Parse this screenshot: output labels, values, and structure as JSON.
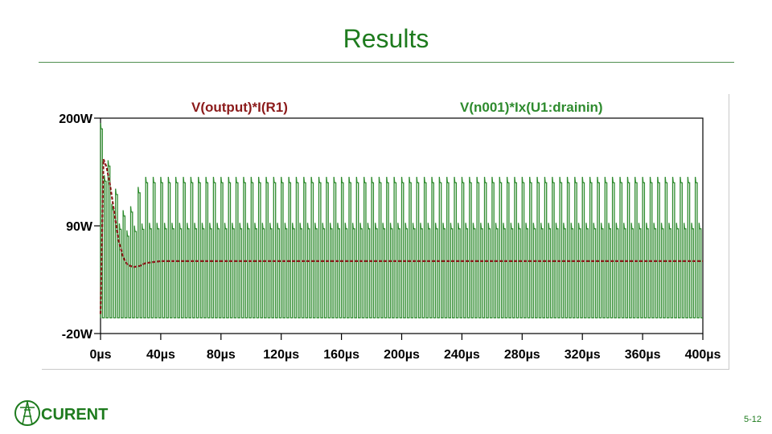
{
  "slide": {
    "title": "Results",
    "page_number": "5-12",
    "logo_text": "CURENT"
  },
  "colors": {
    "title": "#1e7b1e",
    "series_output": "#8b1a1a",
    "series_drain": "#2e8b2e",
    "axis": "#000000"
  },
  "chart_data": {
    "type": "line",
    "title": "",
    "xlabel": "",
    "ylabel": "",
    "xlim": [
      0,
      400
    ],
    "ylim": [
      -20,
      200
    ],
    "yticks": [
      {
        "value": 200,
        "label": "200W"
      },
      {
        "value": 90,
        "label": "90W"
      },
      {
        "value": -20,
        "label": "-20W"
      }
    ],
    "xticks": [
      {
        "value": 0,
        "label": "0µs"
      },
      {
        "value": 40,
        "label": "40µs"
      },
      {
        "value": 80,
        "label": "80µs"
      },
      {
        "value": 120,
        "label": "120µs"
      },
      {
        "value": 160,
        "label": "160µs"
      },
      {
        "value": 200,
        "label": "200µs"
      },
      {
        "value": 240,
        "label": "240µs"
      },
      {
        "value": 280,
        "label": "280µs"
      },
      {
        "value": 320,
        "label": "320µs"
      },
      {
        "value": 360,
        "label": "360µs"
      },
      {
        "value": 400,
        "label": "400µs"
      }
    ],
    "grid": false,
    "series": [
      {
        "name": "V(output)*I(R1)",
        "color": "#8b1a1a",
        "style": "dashed",
        "x": [
          0,
          2,
          4,
          6,
          8,
          10,
          12,
          15,
          18,
          22,
          26,
          30,
          35,
          40,
          50,
          60,
          80,
          120,
          160,
          200,
          240,
          280,
          320,
          360,
          400
        ],
        "y": [
          0,
          158,
          150,
          135,
          115,
          95,
          75,
          58,
          50,
          48,
          49,
          52,
          53,
          54,
          54,
          54,
          54,
          54,
          54,
          54,
          54,
          54,
          54,
          54,
          54
        ]
      },
      {
        "name": "V(n001)*Ix(U1:drainin)",
        "color": "#2e8b2e",
        "style": "switching",
        "period_us": 2.5,
        "low": -4,
        "x": [
          0,
          3,
          6,
          10,
          14,
          18,
          22,
          26,
          30,
          40,
          60,
          100,
          200,
          300,
          400
        ],
        "y_high": [
          195,
          175,
          148,
          128,
          108,
          100,
          120,
          133,
          140,
          140,
          140,
          140,
          140,
          140,
          140
        ],
        "y_mid": [
          150,
          140,
          120,
          100,
          88,
          85,
          90,
          92,
          93,
          93,
          93,
          93,
          93,
          93,
          93
        ]
      }
    ]
  }
}
